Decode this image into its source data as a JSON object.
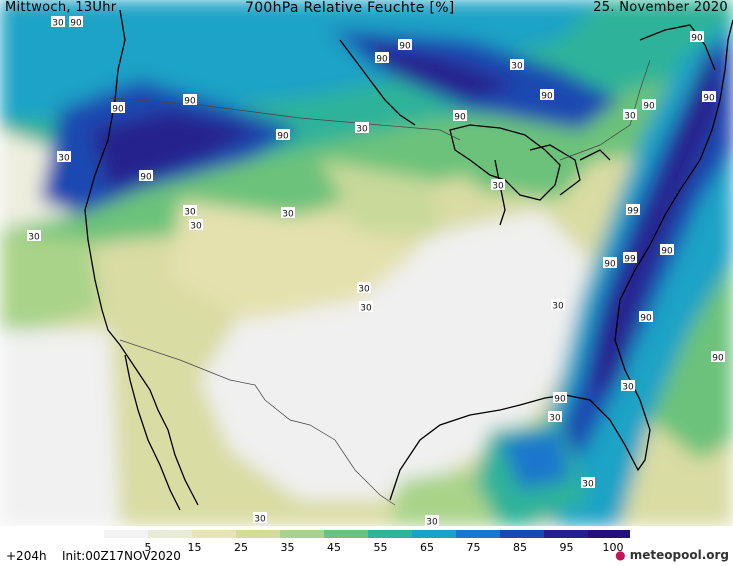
{
  "header": {
    "left": "Mittwoch, 13Uhr",
    "title": "700hPa Relative Feuchte [%]",
    "right": "25. November 2020"
  },
  "footer": {
    "run": "+204h",
    "init": "Init:00Z17NOV2020",
    "logo": "meteopool.org"
  },
  "legend": {
    "ticks": [
      "5",
      "15",
      "25",
      "35",
      "45",
      "55",
      "65",
      "75",
      "85",
      "95",
      "100"
    ],
    "colors": [
      "#f3f3f3",
      "#e8ebd8",
      "#e7e6b0",
      "#d5dc9a",
      "#a9d389",
      "#6cc27a",
      "#2fb39a",
      "#1aa3c6",
      "#1b77cc",
      "#1a49b1",
      "#25208d",
      "#25107a"
    ]
  },
  "map_labels": [
    {
      "text": "30"
    },
    {
      "text": "90"
    },
    {
      "text": "90"
    },
    {
      "text": "90"
    },
    {
      "text": "90"
    },
    {
      "text": "90"
    },
    {
      "text": "90"
    },
    {
      "text": "30"
    },
    {
      "text": "90"
    },
    {
      "text": "90"
    },
    {
      "text": "90"
    },
    {
      "text": "30"
    },
    {
      "text": "30"
    },
    {
      "text": "90"
    },
    {
      "text": "30"
    },
    {
      "text": "90"
    },
    {
      "text": "90"
    },
    {
      "text": "30"
    },
    {
      "text": "30"
    },
    {
      "text": "30"
    },
    {
      "text": "30"
    },
    {
      "text": "30"
    },
    {
      "text": "30"
    },
    {
      "text": "30"
    },
    {
      "text": "99"
    },
    {
      "text": "90"
    },
    {
      "text": "99"
    },
    {
      "text": "90"
    },
    {
      "text": "90"
    },
    {
      "text": "30"
    },
    {
      "text": "90"
    },
    {
      "text": "30"
    },
    {
      "text": "90"
    },
    {
      "text": "30"
    },
    {
      "text": "30"
    },
    {
      "text": "30"
    },
    {
      "text": "30"
    }
  ]
}
